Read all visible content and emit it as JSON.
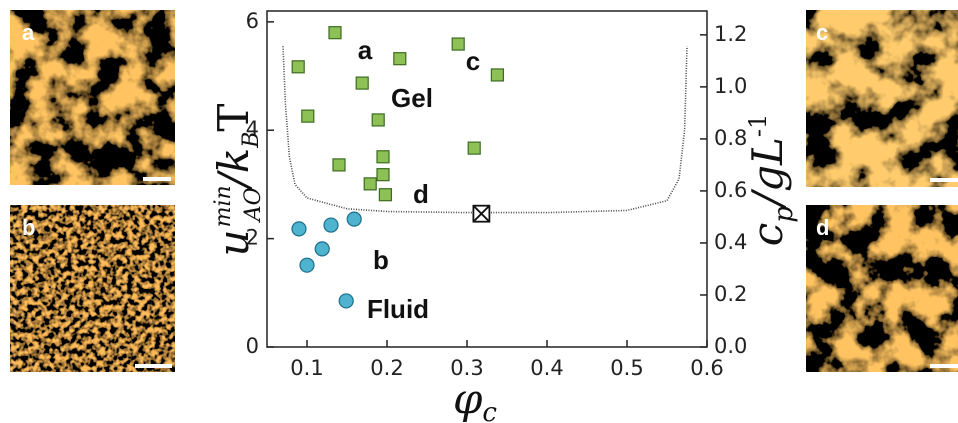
{
  "chart_data": {
    "type": "scatter",
    "xlabel": {
      "base": "φ",
      "sub": "c"
    },
    "ylabel": {
      "base": "u",
      "sup": "min",
      "sub": "AO",
      "mid": "/k",
      "sub2": "B",
      "end": "T"
    },
    "y2label": {
      "base": "c",
      "sub": "p",
      "mid": "/gL",
      "sup": "-1"
    },
    "xlim": [
      0.05,
      0.6
    ],
    "xticks": [
      0.1,
      0.2,
      0.3,
      0.4,
      0.5,
      0.6
    ],
    "ylim": [
      0,
      6.2
    ],
    "yticks": [
      0,
      2,
      4,
      6
    ],
    "y2lim": [
      0,
      1.2917
    ],
    "y2ticks": [
      {
        "value": 0,
        "label": "0.0"
      },
      0.2,
      0.4,
      0.6,
      0.8,
      {
        "value": 1,
        "label": "1.0"
      },
      1.2
    ],
    "series": [
      {
        "marker": "square",
        "color": "#8dc155",
        "x": [
          0.135,
          0.089,
          0.101,
          0.169,
          0.216,
          0.289,
          0.338,
          0.189,
          0.14,
          0.195,
          0.195,
          0.179,
          0.198,
          0.309
        ],
        "y": [
          5.8,
          5.17,
          4.26,
          4.87,
          5.32,
          5.59,
          5.02,
          4.19,
          3.36,
          3.51,
          3.18,
          3.01,
          2.81,
          3.67
        ]
      },
      {
        "marker": "circle",
        "color": "#4eb3cf",
        "x": [
          0.09,
          0.13,
          0.159,
          0.119,
          0.1,
          0.149
        ],
        "y": [
          2.18,
          2.25,
          2.36,
          1.81,
          1.51,
          0.85
        ]
      },
      {
        "marker": "crossed-square",
        "color": "#ffffff",
        "x": [
          0.318
        ],
        "y": [
          2.46
        ]
      },
      {
        "marker": "dotted-line",
        "color": "#444444",
        "x": [
          0.07,
          0.073,
          0.078,
          0.085,
          0.1,
          0.15,
          0.2,
          0.3,
          0.4,
          0.5,
          0.55,
          0.565,
          0.572,
          0.575
        ],
        "y": [
          5.55,
          4.5,
          3.5,
          3.0,
          2.75,
          2.55,
          2.5,
          2.48,
          2.48,
          2.52,
          2.7,
          3.1,
          4.0,
          5.55
        ]
      }
    ],
    "annotations": [
      "a",
      "c",
      "Gel",
      "d",
      "b",
      "Fluid"
    ],
    "panels": [
      "a",
      "b",
      "c",
      "d"
    ]
  }
}
